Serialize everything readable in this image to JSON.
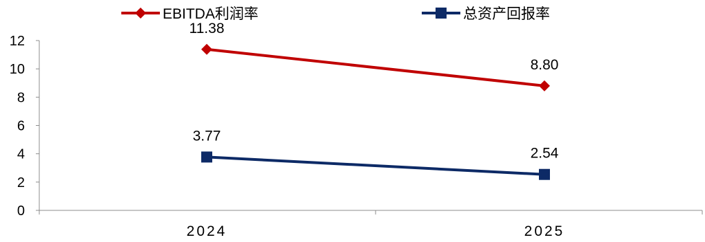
{
  "chart_data": {
    "type": "line",
    "categories": [
      "2024",
      "2025"
    ],
    "series": [
      {
        "name": "EBITDA利润率",
        "values": [
          11.38,
          8.8
        ],
        "labels": [
          "11.38",
          "8.80"
        ],
        "color": "#c00000",
        "marker": "diamond"
      },
      {
        "name": "总资产回报率",
        "values": [
          3.77,
          2.54
        ],
        "labels": [
          "3.77",
          "2.54"
        ],
        "color": "#0d2a66",
        "marker": "square"
      }
    ],
    "y_ticks": [
      "0",
      "2",
      "4",
      "6",
      "8",
      "10",
      "12"
    ],
    "ylim": [
      0,
      12
    ],
    "grid": false,
    "legend": "top"
  }
}
